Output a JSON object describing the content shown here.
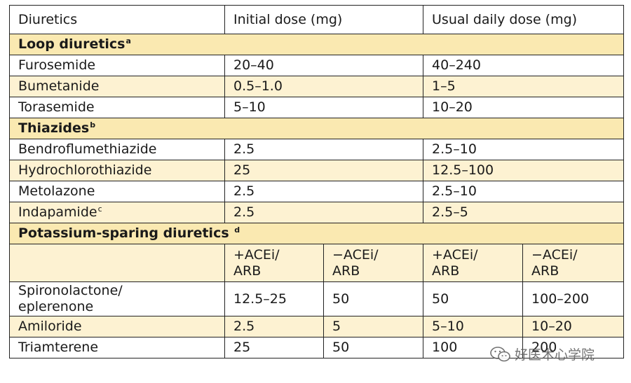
{
  "header": {
    "diuretics": "Diuretics",
    "initial": "Initial dose (mg)",
    "usual": "Usual daily dose (mg)"
  },
  "loop": {
    "title": "Loop diuretics",
    "sup": "a",
    "rows": [
      {
        "name": "Furosemide",
        "initial": "20–40",
        "usual": "40–240"
      },
      {
        "name": "Bumetanide",
        "initial": "0.5–1.0",
        "usual": "1–5"
      },
      {
        "name": "Torasemide",
        "initial": "5–10",
        "usual": "10–20"
      }
    ]
  },
  "thiazides": {
    "title": "Thiazides",
    "sup": "b",
    "rows": [
      {
        "name": "Bendroflumethiazide",
        "initial": "2.5",
        "usual": "2.5–10"
      },
      {
        "name": "Hydrochlorothiazide",
        "initial": "25",
        "usual": "12.5–100"
      },
      {
        "name": "Metolazone",
        "initial": "2.5",
        "usual": "2.5–10"
      },
      {
        "name": "Indapamide",
        "sup": "c",
        "initial": "2.5",
        "usual": "2.5–5"
      }
    ]
  },
  "potassium": {
    "title": "Potassium-sparing diuretics",
    "sup": "d",
    "subheaders": {
      "plus": [
        "+ACEi/",
        "ARB"
      ],
      "minus": [
        "−ACEi/",
        "ARB"
      ]
    },
    "rows": [
      {
        "name": [
          "Spironolactone/",
          "eplerenone"
        ],
        "init_plus": "12.5–25",
        "init_minus": "50",
        "usual_plus": "50",
        "usual_minus": "100–200"
      },
      {
        "name": [
          "Amiloride"
        ],
        "init_plus": "2.5",
        "init_minus": "5",
        "usual_plus": "5–10",
        "usual_minus": "10–20"
      },
      {
        "name": [
          "Triamterene"
        ],
        "init_plus": "25",
        "init_minus": "50",
        "usual_plus": "100",
        "usual_minus": "200"
      }
    ]
  },
  "watermark": {
    "text": "好医术心学院",
    "icon": "wechat-icon"
  }
}
